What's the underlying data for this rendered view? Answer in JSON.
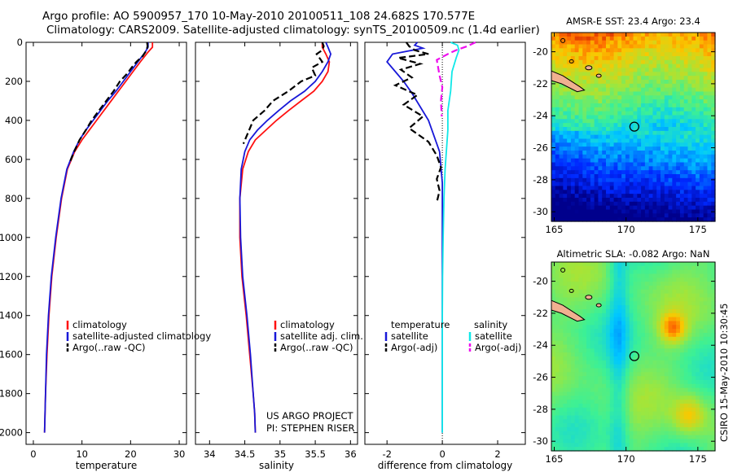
{
  "header": {
    "line1": "Argo profile: AO 5900957_170 10-May-2010 20100511_108 24.682S 170.577E",
    "line2": "Climatology: CARS2009. Satellite-adjusted climatology: synTS_20100509.nc (1.4d earlier)"
  },
  "colors": {
    "climatology": "#ff1010",
    "satellite": "#1818d8",
    "argo": "#000000",
    "sal_satellite": "#10e8e8",
    "sal_argo": "#ee10ee",
    "land": "#f0b090"
  },
  "chart_data": [
    {
      "type": "line",
      "panel": "temperature",
      "xlabel": "temperature",
      "ylabel": "",
      "xlim": [
        -1.5,
        31.5
      ],
      "ylim": [
        2060,
        0
      ],
      "xticks": [
        0,
        10,
        20,
        30
      ],
      "yticks": [
        0,
        200,
        400,
        600,
        800,
        1000,
        1200,
        1400,
        1600,
        1800,
        2000
      ],
      "legend": [
        "climatology",
        "satellite-adjusted climatology",
        "Argo(..raw -QC)"
      ],
      "series": [
        {
          "name": "climatology",
          "color_key": "climatology",
          "x": [
            24.5,
            24.5,
            23.6,
            22,
            20.5,
            19,
            17.5,
            16,
            14.5,
            13,
            11.5,
            10,
            8.5,
            7,
            5.8,
            4.7,
            3.8,
            3.2,
            2.8,
            2.5,
            2.4,
            2.3
          ],
          "y": [
            0,
            25,
            50,
            100,
            150,
            200,
            250,
            300,
            350,
            400,
            450,
            500,
            560,
            650,
            800,
            1000,
            1200,
            1400,
            1600,
            1800,
            1900,
            2000
          ]
        },
        {
          "name": "satellite-adjusted climatology",
          "color_key": "satellite",
          "x": [
            23.6,
            23.6,
            23,
            21.5,
            20,
            18.5,
            17,
            15.3,
            13.8,
            12.3,
            10.8,
            9.5,
            8.3,
            6.9,
            5.7,
            4.6,
            3.7,
            3.1,
            2.7,
            2.5,
            2.4,
            2.3
          ],
          "y": [
            0,
            25,
            50,
            100,
            150,
            200,
            250,
            300,
            350,
            400,
            450,
            500,
            560,
            650,
            800,
            1000,
            1200,
            1400,
            1600,
            1800,
            1900,
            2000
          ]
        },
        {
          "name": "Argo(..raw -QC)",
          "color_key": "argo",
          "x": [
            23.4,
            23.5,
            23.3,
            22.5,
            21.2,
            20.2,
            19.3,
            17.8,
            16.5,
            15,
            13.5,
            12,
            10.8,
            9.5,
            8.4,
            7.4
          ],
          "y": [
            0,
            20,
            40,
            70,
            100,
            130,
            160,
            200,
            250,
            300,
            350,
            400,
            450,
            500,
            560,
            620
          ]
        }
      ]
    },
    {
      "type": "line",
      "panel": "salinity",
      "xlabel": "salinity",
      "ylabel": "",
      "xlim": [
        33.8,
        36.1
      ],
      "ylim": [
        2060,
        0
      ],
      "xticks": [
        34,
        34.5,
        35,
        35.5,
        36
      ],
      "legend": [
        "climatology",
        "satellite adj. clim.",
        "Argo(..raw -QC)"
      ],
      "series": [
        {
          "name": "climatology",
          "color_key": "climatology",
          "x": [
            35.6,
            35.6,
            35.65,
            35.7,
            35.68,
            35.6,
            35.48,
            35.3,
            35.12,
            34.95,
            34.8,
            34.65,
            34.55,
            34.47,
            34.43,
            34.43,
            34.46,
            34.52,
            34.57,
            34.62,
            34.64,
            34.65
          ],
          "y": [
            0,
            25,
            60,
            100,
            150,
            200,
            250,
            300,
            350,
            400,
            450,
            500,
            560,
            650,
            800,
            1000,
            1200,
            1400,
            1600,
            1800,
            1900,
            2000
          ]
        },
        {
          "name": "satellite adj. clim.",
          "color_key": "satellite",
          "x": [
            35.65,
            35.68,
            35.72,
            35.68,
            35.6,
            35.5,
            35.35,
            35.15,
            34.98,
            34.82,
            34.68,
            34.57,
            34.5,
            34.45,
            34.43,
            34.44,
            34.47,
            34.53,
            34.58,
            34.62,
            34.64,
            34.65
          ],
          "y": [
            0,
            25,
            60,
            100,
            150,
            200,
            250,
            300,
            350,
            400,
            450,
            500,
            560,
            650,
            800,
            1000,
            1200,
            1400,
            1600,
            1800,
            1900,
            2000
          ]
        },
        {
          "name": "Argo(..raw -QC)",
          "color_key": "argo",
          "x": [
            35.6,
            35.62,
            35.6,
            35.52,
            35.6,
            35.45,
            35.5,
            35.3,
            35.12,
            34.9,
            34.78,
            34.62,
            34.55,
            34.48
          ],
          "y": [
            0,
            20,
            40,
            60,
            100,
            130,
            170,
            200,
            250,
            300,
            350,
            400,
            460,
            520
          ]
        }
      ]
    },
    {
      "type": "line",
      "panel": "difference",
      "xlabel": "difference from climatology",
      "ylabel": "",
      "xlim": [
        -2.8,
        3.0
      ],
      "ylim": [
        2060,
        0
      ],
      "xticks": [
        -2,
        0,
        2
      ],
      "legend_left_title": "temperature",
      "legend_right_title": "salinity",
      "legend": [
        "satellite",
        "Argo(-adj)",
        "satellite",
        "Argo(-adj)"
      ],
      "series": [
        {
          "name": "temperature satellite",
          "color_key": "satellite",
          "x": [
            -0.9,
            -1,
            -0.7,
            -1.8,
            -2,
            -1.7,
            -1.4,
            -1.1,
            -0.8,
            -0.5,
            -0.3,
            -0.1,
            -0.05,
            0,
            0,
            0,
            0,
            0,
            0,
            0,
            0
          ],
          "y": [
            0,
            15,
            30,
            60,
            100,
            150,
            200,
            260,
            330,
            400,
            480,
            560,
            640,
            720,
            800,
            1000,
            1200,
            1400,
            1600,
            1800,
            2000
          ]
        },
        {
          "name": "temperature Argo(-adj)",
          "color_key": "argo",
          "x": [
            -1.3,
            -1.2,
            -1,
            -0.5,
            -1.6,
            -0.8,
            -1.5,
            -1.1,
            -1.7,
            -0.9,
            -1.4,
            -0.7,
            -1.2,
            -0.5,
            -0.2,
            -0.05,
            -0.2,
            -0.1,
            -0.2
          ],
          "y": [
            0,
            20,
            40,
            60,
            80,
            110,
            140,
            180,
            220,
            270,
            320,
            380,
            440,
            510,
            580,
            640,
            700,
            760,
            820
          ]
        },
        {
          "name": "salinity satellite",
          "color_key": "sal_satellite",
          "x": [
            0.3,
            0.55,
            0.6,
            0.5,
            0.35,
            0.3,
            0.2,
            0.2,
            0.15,
            0.1,
            0.06,
            0.03,
            0.01,
            0,
            0,
            0,
            0
          ],
          "y": [
            0,
            15,
            40,
            80,
            150,
            250,
            350,
            450,
            550,
            650,
            800,
            1000,
            1200,
            1400,
            1600,
            1800,
            2000
          ]
        },
        {
          "name": "salinity Argo(-adj)",
          "color_key": "sal_argo",
          "x": [
            1.2,
            0.9,
            0.5,
            0.2,
            -0.2,
            -0.15,
            -0.1,
            0,
            -0.05,
            -0.02
          ],
          "y": [
            0,
            20,
            40,
            60,
            90,
            130,
            170,
            230,
            300,
            380
          ]
        }
      ]
    },
    {
      "type": "heatmap",
      "panel": "map_sst",
      "title": "AMSR-E SST: 23.4 Argo: 23.4",
      "xticks": [
        165,
        170,
        175
      ],
      "yticks": [
        -20,
        -22,
        -24,
        -26,
        -28,
        -30
      ],
      "xlim": [
        164.8,
        176.2
      ],
      "ylim": [
        -30.6,
        -18.8
      ],
      "float_position": [
        170.577,
        -24.682
      ],
      "value_range": [
        19,
        27
      ]
    },
    {
      "type": "heatmap",
      "panel": "map_sla",
      "title": "Altimetric SLA: -0.082 Argo: NaN",
      "xticks": [
        165,
        170,
        175
      ],
      "yticks": [
        -20,
        -22,
        -24,
        -26,
        -28,
        -30
      ],
      "xlim": [
        164.8,
        176.2
      ],
      "ylim": [
        -30.6,
        -18.8
      ],
      "float_position": [
        170.577,
        -24.682
      ]
    }
  ],
  "annotations": {
    "project_line1": "US ARGO PROJECT",
    "project_line2": "PI: STEPHEN RISER",
    "footer_vertical": "CSIRO 15-May-2010 10:30:45"
  }
}
